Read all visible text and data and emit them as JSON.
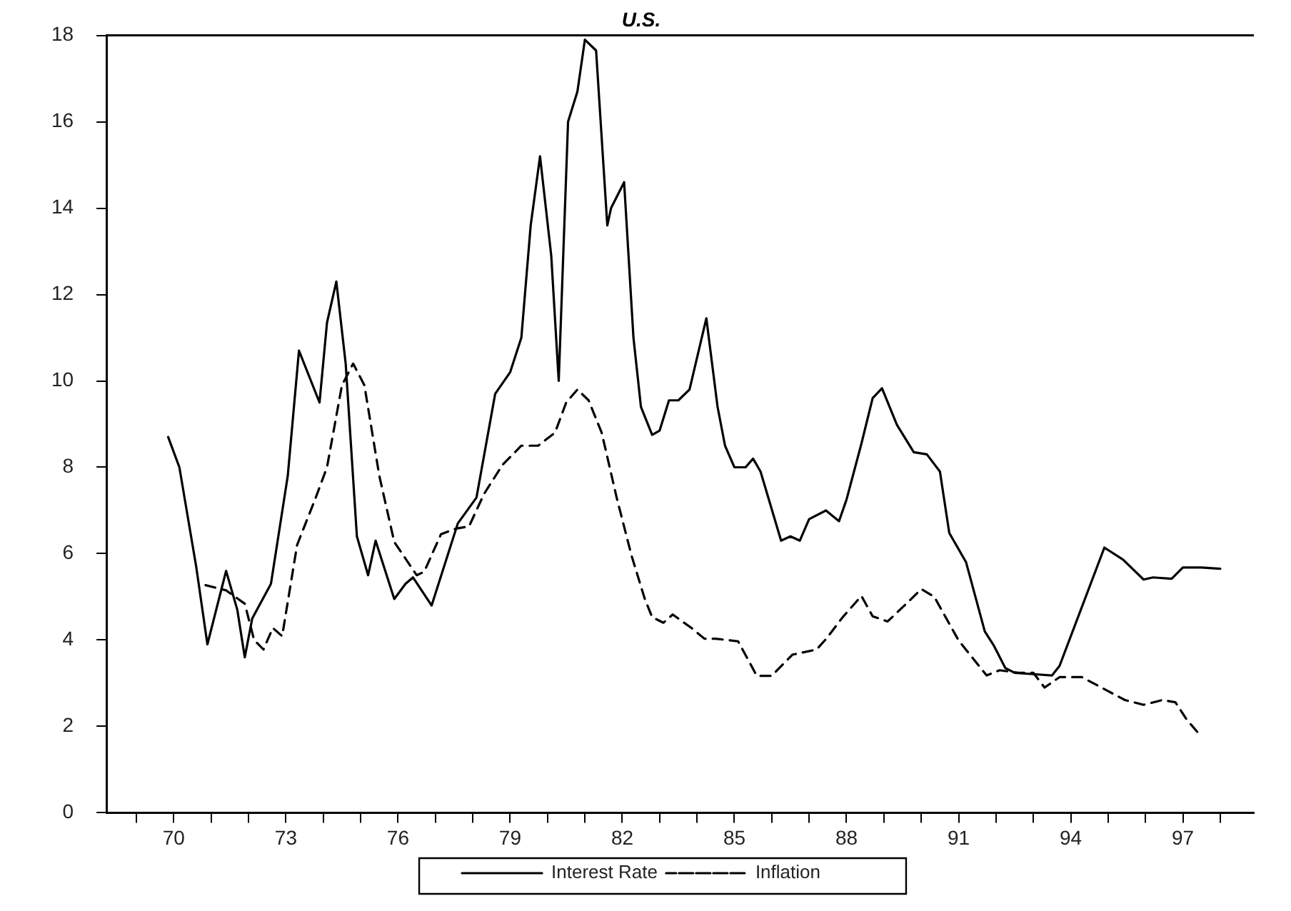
{
  "chart_data": {
    "type": "line",
    "title": "U.S.",
    "xlim": [
      68.2,
      98.9
    ],
    "xticks": [
      {
        "value": 69,
        "label": null
      },
      70,
      {
        "value": 71,
        "label": null
      },
      {
        "value": 72,
        "label": null
      },
      73,
      {
        "value": 74,
        "label": null
      },
      {
        "value": 75,
        "label": null
      },
      76,
      {
        "value": 77,
        "label": null
      },
      {
        "value": 78,
        "label": null
      },
      79,
      {
        "value": 80,
        "label": null
      },
      {
        "value": 81,
        "label": null
      },
      82,
      {
        "value": 83,
        "label": null
      },
      {
        "value": 84,
        "label": null
      },
      85,
      {
        "value": 86,
        "label": null
      },
      {
        "value": 87,
        "label": null
      },
      88,
      {
        "value": 89,
        "label": null
      },
      {
        "value": 90,
        "label": null
      },
      91,
      {
        "value": 92,
        "label": null
      },
      {
        "value": 93,
        "label": null
      },
      94,
      {
        "value": 95,
        "label": null
      },
      {
        "value": 96,
        "label": null
      },
      97,
      {
        "value": 98,
        "label": null
      }
    ],
    "ylim": [
      0,
      18
    ],
    "yticks": [
      0,
      2,
      4,
      6,
      8,
      10,
      12,
      14,
      16,
      18
    ],
    "grid": false,
    "legend": "bottom",
    "marker": "none",
    "series": [
      {
        "name": "Interest Rate",
        "color": "#000000",
        "line_style": "solid",
        "x": [
          69.85,
          70.15,
          70.6,
          70.9,
          71.4,
          71.7,
          71.9,
          72.1,
          72.6,
          73.05,
          73.35,
          73.9,
          74.1,
          74.35,
          74.6,
          74.9,
          75.2,
          75.4,
          75.9,
          76.2,
          76.4,
          76.9,
          77.6,
          78.1,
          78.6,
          79.0,
          79.3,
          79.55,
          79.8,
          80.1,
          80.3,
          80.55,
          80.8,
          81.0,
          81.3,
          81.6,
          81.7,
          82.05,
          82.3,
          82.5,
          82.8,
          83.0,
          83.25,
          83.5,
          83.8,
          84.25,
          84.55,
          84.75,
          85.0,
          85.3,
          85.5,
          85.7,
          86.25,
          86.5,
          86.75,
          87.0,
          87.45,
          87.8,
          88.0,
          88.4,
          88.7,
          88.95,
          89.35,
          89.8,
          90.15,
          90.5,
          90.75,
          91.2,
          91.7,
          91.95,
          92.25,
          92.5,
          93.0,
          93.5,
          93.7,
          94.3,
          94.9,
          95.4,
          95.95,
          96.2,
          96.7,
          97.0,
          97.5,
          98.0
        ],
        "values": [
          8.7,
          8.0,
          5.7,
          3.9,
          5.6,
          4.7,
          3.6,
          4.5,
          5.3,
          7.8,
          10.7,
          9.5,
          11.35,
          12.3,
          10.4,
          6.4,
          5.5,
          6.3,
          4.95,
          5.3,
          5.45,
          4.8,
          6.7,
          7.3,
          9.7,
          10.2,
          11.0,
          13.6,
          15.2,
          12.9,
          10.0,
          16.0,
          16.7,
          17.9,
          17.65,
          13.6,
          14.0,
          14.6,
          11.0,
          9.4,
          8.75,
          8.85,
          9.55,
          9.55,
          9.8,
          11.45,
          9.4,
          8.5,
          8.0,
          8.0,
          8.2,
          7.9,
          6.3,
          6.4,
          6.3,
          6.8,
          7.0,
          6.75,
          7.25,
          8.55,
          9.6,
          9.83,
          8.98,
          8.35,
          8.3,
          7.9,
          6.48,
          5.8,
          4.2,
          3.86,
          3.35,
          3.24,
          3.21,
          3.18,
          3.4,
          4.77,
          6.14,
          5.86,
          5.4,
          5.45,
          5.42,
          5.68,
          5.68,
          5.65
        ]
      },
      {
        "name": "Inflation",
        "color": "#000000",
        "line_style": "dashed",
        "x": [
          70.85,
          71.4,
          71.9,
          72.15,
          72.4,
          72.65,
          72.9,
          73.3,
          73.8,
          74.1,
          74.5,
          74.8,
          75.1,
          75.5,
          75.9,
          76.5,
          76.7,
          77.15,
          77.55,
          77.9,
          78.3,
          78.8,
          79.3,
          79.75,
          80.2,
          80.5,
          80.8,
          81.1,
          81.45,
          81.85,
          82.25,
          82.6,
          82.8,
          83.1,
          83.35,
          83.85,
          84.2,
          84.5,
          85.1,
          85.6,
          86.0,
          86.55,
          87.2,
          87.45,
          87.9,
          88.4,
          88.7,
          89.1,
          89.6,
          90.0,
          90.35,
          91.0,
          91.75,
          92.1,
          92.6,
          93.0,
          93.3,
          93.7,
          94.3,
          94.95,
          95.45,
          95.95,
          96.45,
          96.8,
          97.1,
          97.5
        ],
        "values": [
          5.27,
          5.15,
          4.84,
          4.0,
          3.78,
          4.28,
          4.09,
          6.2,
          7.3,
          8.0,
          9.9,
          10.4,
          9.9,
          7.8,
          6.27,
          5.5,
          5.58,
          6.45,
          6.58,
          6.63,
          7.38,
          8.06,
          8.5,
          8.5,
          8.8,
          9.5,
          9.8,
          9.55,
          8.8,
          7.3,
          5.95,
          4.96,
          4.53,
          4.4,
          4.59,
          4.28,
          4.03,
          4.03,
          3.97,
          3.17,
          3.17,
          3.66,
          3.78,
          4.02,
          4.53,
          5.02,
          4.55,
          4.43,
          4.84,
          5.18,
          5.0,
          3.99,
          3.18,
          3.3,
          3.24,
          3.24,
          2.9,
          3.14,
          3.14,
          2.84,
          2.61,
          2.5,
          2.61,
          2.56,
          2.16,
          1.76
        ]
      }
    ]
  }
}
